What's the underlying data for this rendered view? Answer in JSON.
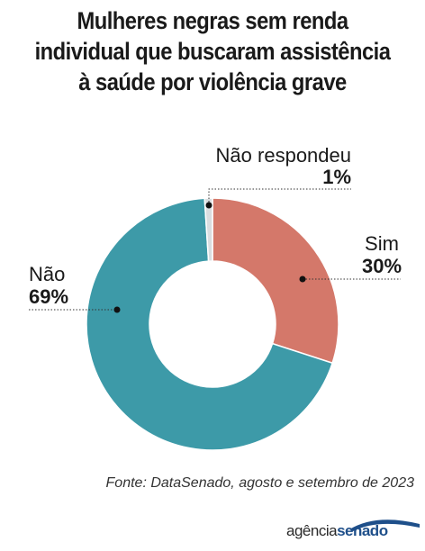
{
  "title_lines": [
    "Mulheres negras sem renda",
    "individual que buscaram assistência",
    "à saúde por violência grave"
  ],
  "chart_data": {
    "type": "pie",
    "style": "donut",
    "slices": [
      {
        "name": "Sim",
        "label": "30%",
        "value": 30,
        "color": "#d4786a"
      },
      {
        "name": "Não",
        "label": "69%",
        "value": 69,
        "color": "#3d9aa8"
      },
      {
        "name": "Não respondeu",
        "label": "1%",
        "value": 1,
        "color": "#d9dde0"
      }
    ],
    "start": "12 o'clock",
    "direction": "clockwise"
  },
  "source": "Fonte: DataSenado, agosto e setembro de 2023",
  "logo": {
    "part1": "agência",
    "part2": "senado",
    "color": "#1e4f8a"
  }
}
